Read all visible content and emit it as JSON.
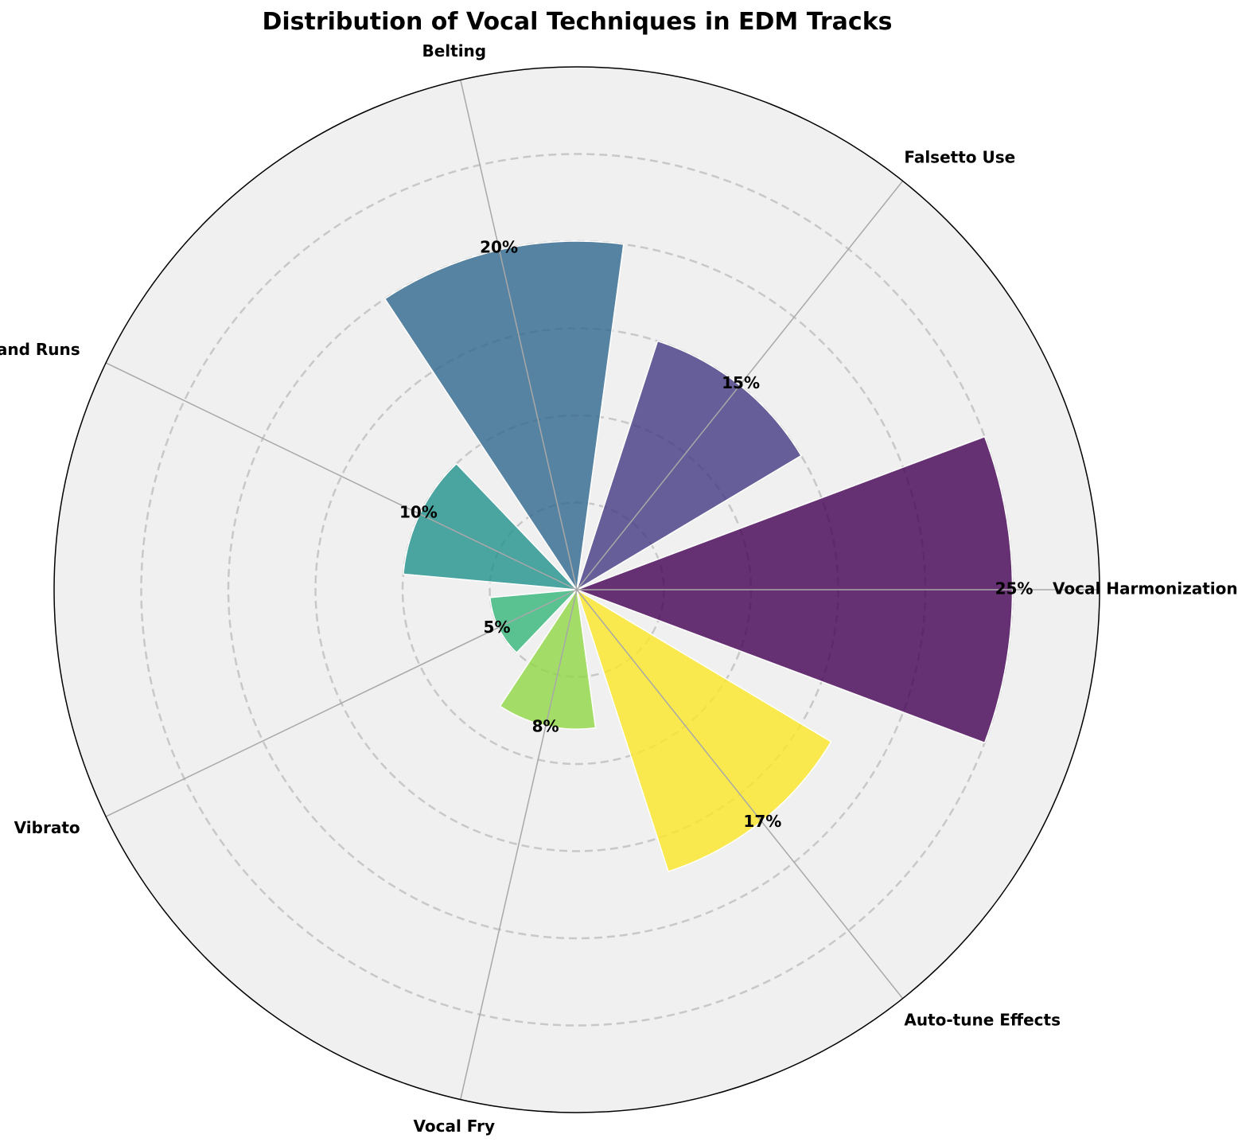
{
  "chart_data": {
    "type": "polar-bar",
    "title": "Distribution of Vocal Techniques in EDM Tracks",
    "categories": [
      "Vocal Harmonization",
      "Falsetto Use",
      "Belting",
      "Riffing and Runs",
      "Vibrato",
      "Vocal Fry",
      "Auto-tune Effects"
    ],
    "values": [
      25,
      15,
      20,
      10,
      5,
      8,
      17
    ],
    "value_suffix": "%",
    "rlim": [
      0,
      30
    ],
    "grid": true,
    "colors": [
      "#440154",
      "#443983",
      "#31688e",
      "#21918c",
      "#35b779",
      "#90d743",
      "#fde725"
    ],
    "background": "#f0f0f0"
  }
}
